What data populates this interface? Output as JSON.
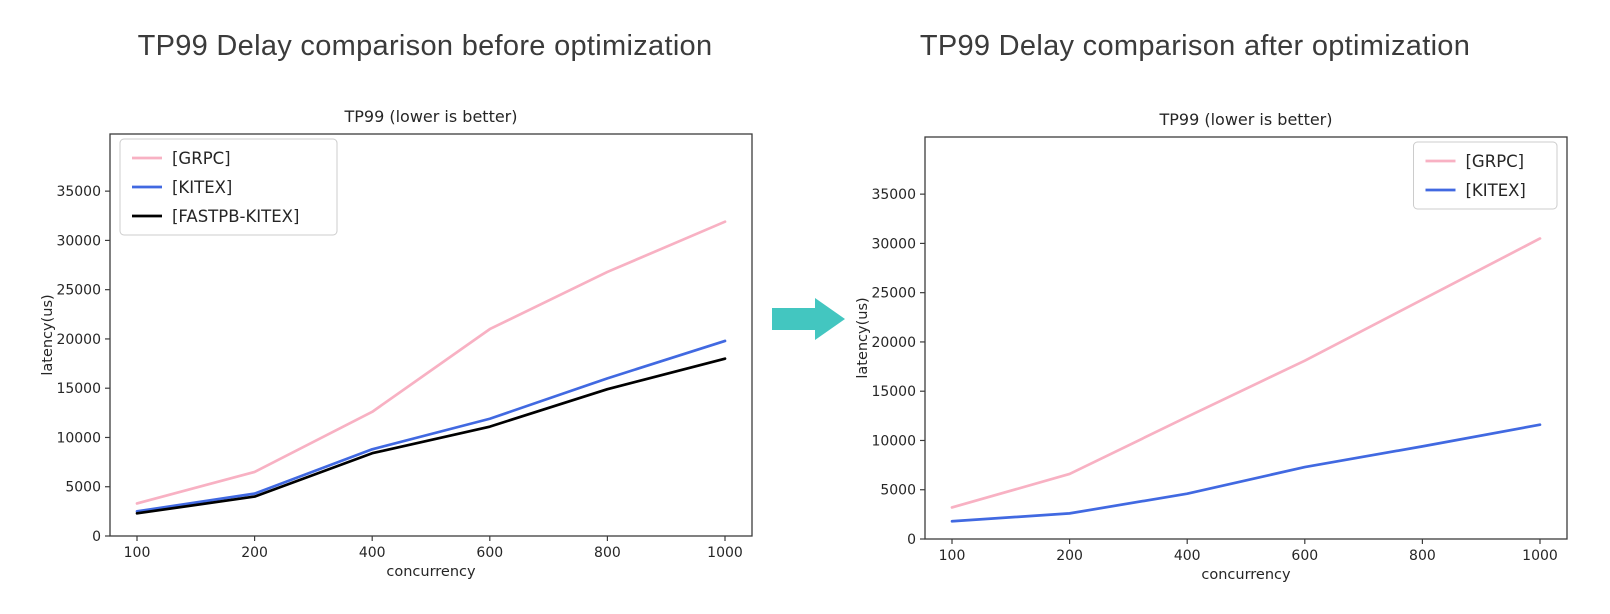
{
  "page": {
    "left_heading": "TP99 Delay comparison before optimization",
    "right_heading": "TP99 Delay comparison after optimization",
    "arrow_color": "#43c6c0",
    "background": "#ffffff"
  },
  "colors": {
    "grpc_pink": "#f8b1c3",
    "kitex_blue": "#4169e1",
    "fastpb_black": "#000000",
    "frame": "#3c3c3c",
    "chart_text": "#262626",
    "legend_border": "#cccccc"
  },
  "chart_data": [
    {
      "type": "line",
      "title": "TP99 (lower is better)",
      "xlabel": "concurrency",
      "ylabel": "latency(us)",
      "categories": [
        "100",
        "200",
        "400",
        "600",
        "800",
        "1000"
      ],
      "yticks": [
        0,
        5000,
        10000,
        15000,
        20000,
        25000,
        30000,
        35000
      ],
      "ylim": [
        0,
        40800
      ],
      "grid": false,
      "legend_position": "upper-left",
      "series": [
        {
          "name": "[GRPC]",
          "color": "#f8b1c3",
          "values": [
            3300,
            6500,
            12600,
            21000,
            26800,
            31900
          ]
        },
        {
          "name": "[KITEX]",
          "color": "#4169e1",
          "values": [
            2500,
            4300,
            8800,
            11900,
            16000,
            19800
          ]
        },
        {
          "name": "[FASTPB-KITEX]",
          "color": "#000000",
          "values": [
            2300,
            4000,
            8400,
            11100,
            14900,
            18000
          ]
        }
      ]
    },
    {
      "type": "line",
      "title": "TP99 (lower is better)",
      "xlabel": "concurrency",
      "ylabel": "latency(us)",
      "categories": [
        "100",
        "200",
        "400",
        "600",
        "800",
        "1000"
      ],
      "yticks": [
        0,
        5000,
        10000,
        15000,
        20000,
        25000,
        30000,
        35000
      ],
      "ylim": [
        0,
        40800
      ],
      "grid": false,
      "legend_position": "upper-right",
      "series": [
        {
          "name": "[GRPC]",
          "color": "#f8b1c3",
          "values": [
            3200,
            6600,
            12400,
            18100,
            24300,
            30500
          ]
        },
        {
          "name": "[KITEX]",
          "color": "#4169e1",
          "values": [
            1800,
            2600,
            4600,
            7300,
            9400,
            11600
          ]
        }
      ]
    }
  ]
}
